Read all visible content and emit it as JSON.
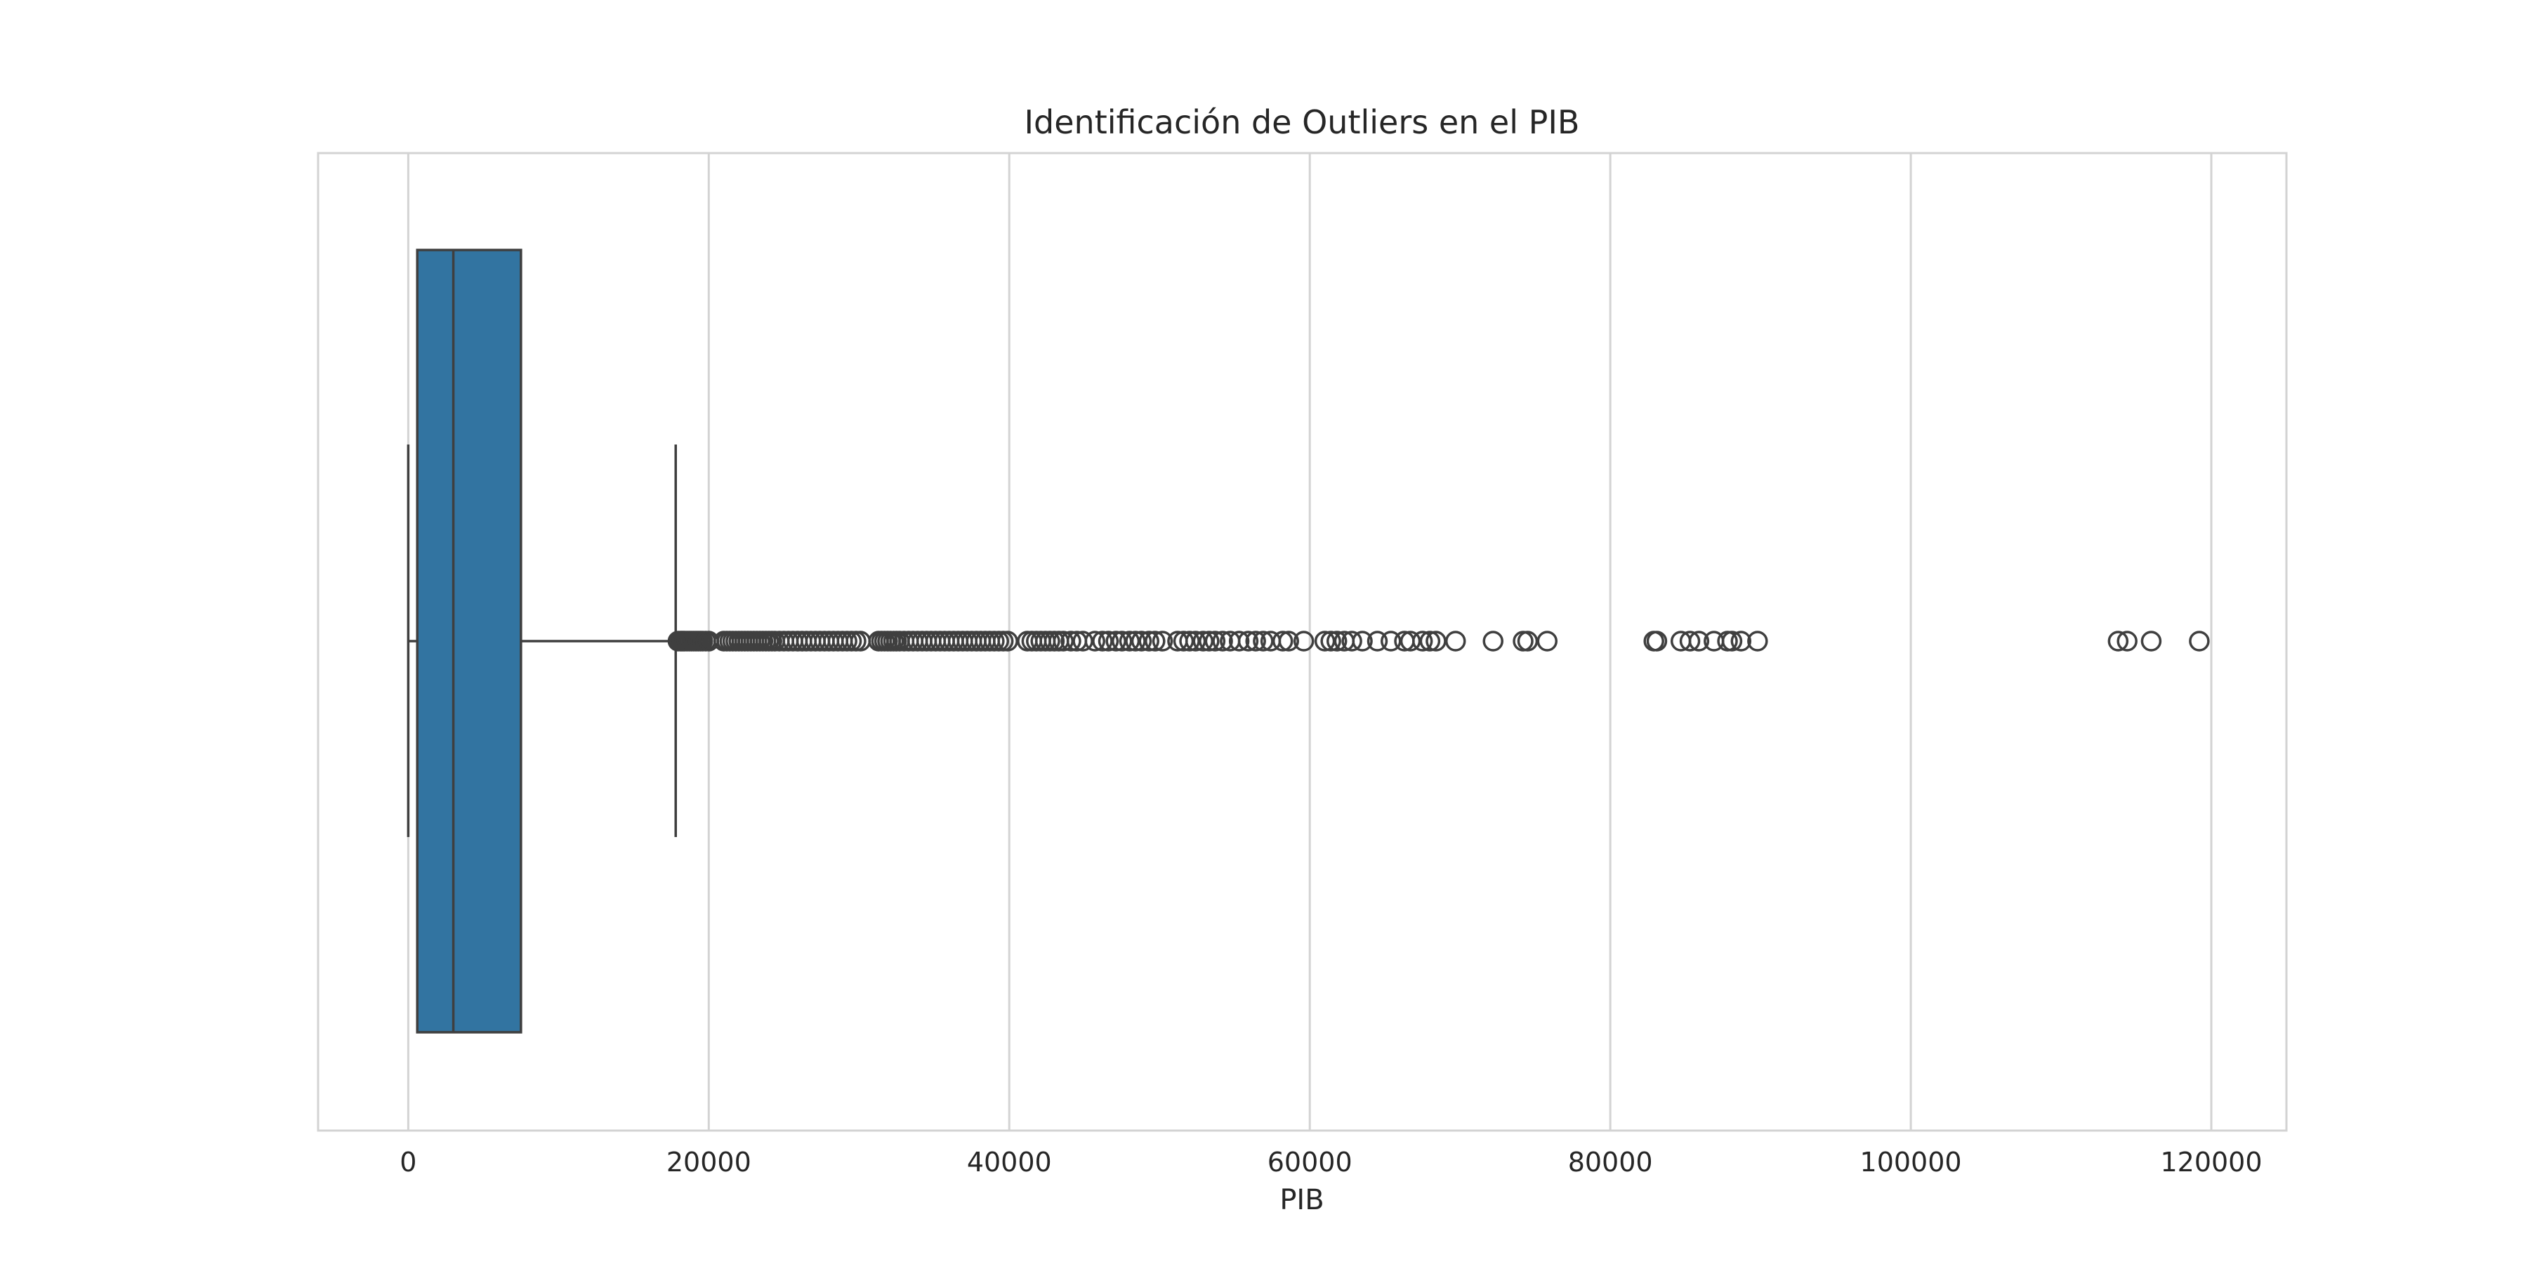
{
  "chart_data": {
    "type": "box",
    "orientation": "horizontal",
    "title": "Identificación de Outliers en el PIB",
    "xlabel": "PIB",
    "ylabel": "",
    "xlim": [
      -6000,
      125000
    ],
    "xticks": [
      0,
      20000,
      40000,
      60000,
      80000,
      100000,
      120000
    ],
    "xtick_labels": [
      "0",
      "20000",
      "40000",
      "60000",
      "80000",
      "100000",
      "120000"
    ],
    "grid": "vertical",
    "box": {
      "whisker_low": 0,
      "q1": 600,
      "median": 3000,
      "q3": 7500,
      "whisker_high": 17800
    },
    "outliers": [
      17950,
      18100,
      18200,
      18300,
      18400,
      18550,
      18700,
      18850,
      19000,
      19150,
      19300,
      19450,
      19600,
      19800,
      20000,
      21000,
      21200,
      21400,
      21600,
      21800,
      22000,
      22200,
      22400,
      22600,
      22800,
      23000,
      23200,
      23400,
      23600,
      23800,
      24000,
      24200,
      24400,
      24700,
      25000,
      25300,
      25600,
      25900,
      26200,
      26500,
      26800,
      27100,
      27400,
      27700,
      28000,
      28300,
      28600,
      28900,
      29200,
      29500,
      29800,
      30100,
      31300,
      31500,
      31700,
      31900,
      32100,
      32300,
      32500,
      32700,
      33000,
      33300,
      33600,
      33900,
      34200,
      34500,
      34800,
      35100,
      35400,
      35700,
      36000,
      36300,
      36600,
      36900,
      37200,
      37500,
      37800,
      38100,
      38400,
      38700,
      39000,
      39300,
      39600,
      39900,
      41200,
      41500,
      41800,
      42100,
      42400,
      42700,
      43000,
      43300,
      43600,
      44100,
      44500,
      44900,
      45700,
      46200,
      46600,
      47100,
      47500,
      48000,
      48400,
      48800,
      49300,
      49700,
      50200,
      51200,
      51600,
      52000,
      52400,
      52900,
      53300,
      53700,
      54200,
      54700,
      55300,
      55900,
      56400,
      56900,
      57400,
      58200,
      58600,
      59600,
      61000,
      61400,
      61800,
      62300,
      62800,
      63500,
      64500,
      65400,
      66300,
      66700,
      67500,
      68000,
      68400,
      69700,
      72200,
      74200,
      74500,
      75800,
      82900,
      83100,
      84700,
      85300,
      85900,
      86900,
      87800,
      88100,
      88700,
      89800,
      113800,
      114400,
      116000,
      119200
    ],
    "box_color": "#3274a1",
    "line_color": "#3f3f3f",
    "grid_color": "#d3d3d3"
  }
}
